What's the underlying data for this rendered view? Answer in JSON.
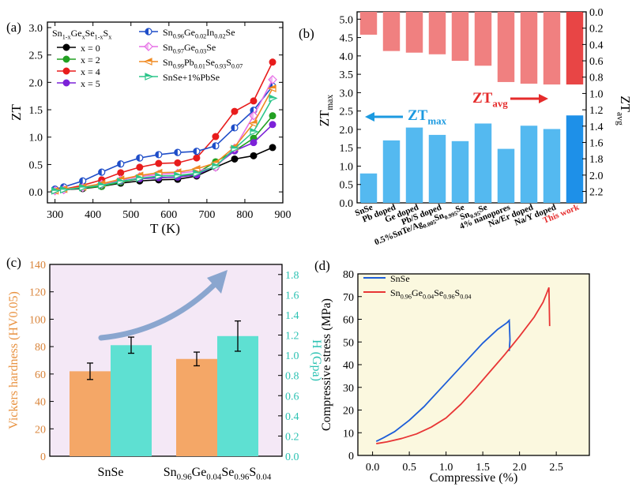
{
  "figure": {
    "panel_labels": [
      "(a)",
      "(b)",
      "(c)",
      "(d)"
    ],
    "colors": {
      "axis": "#000000",
      "b_top": "#f08080",
      "b_top_highlight": "#e84545",
      "b_bottom": "#54b9f0",
      "b_bottom_highlight": "#1e90e8",
      "c_bg": "#f4e8f6",
      "c_bar_left": "#f4a767",
      "c_bar_right": "#5ee0d2",
      "c_arrow": "#8aa6cf",
      "d_bg": "#fbf8df",
      "red_text": "#e52b2b",
      "blue_text": "#1c9ae0"
    }
  },
  "chart_data": [
    {
      "type": "line",
      "panel": "(a)",
      "xlabel": "T (K)",
      "ylabel": "ZT",
      "xlim": [
        280,
        900
      ],
      "ylim": [
        -0.2,
        3.1
      ],
      "xticks": [
        300,
        400,
        500,
        600,
        700,
        800,
        900
      ],
      "yticks": [
        0.0,
        0.5,
        1.0,
        1.5,
        2.0,
        2.5,
        3.0
      ],
      "legend_title": "Sn1-xGexSe1-xSx",
      "series": [
        {
          "name": "x = 0",
          "legend": "x = 0",
          "color": "#000000",
          "marker": "circle",
          "x": [
            300,
            323,
            373,
            423,
            473,
            523,
            573,
            623,
            673,
            723,
            773,
            823,
            873
          ],
          "y": [
            0.03,
            0.04,
            0.06,
            0.1,
            0.16,
            0.2,
            0.22,
            0.23,
            0.29,
            0.45,
            0.6,
            0.66,
            0.81
          ]
        },
        {
          "name": "x = 2",
          "legend": "x = 2",
          "color": "#22a022",
          "marker": "circle",
          "x": [
            300,
            323,
            373,
            423,
            473,
            523,
            573,
            623,
            673,
            723,
            773,
            823,
            873
          ],
          "y": [
            0.02,
            0.04,
            0.07,
            0.1,
            0.18,
            0.24,
            0.26,
            0.27,
            0.34,
            0.55,
            0.75,
            0.98,
            1.39
          ]
        },
        {
          "name": "x = 4",
          "legend": "x = 4",
          "color": "#e81c1c",
          "marker": "circle",
          "x": [
            300,
            323,
            373,
            423,
            473,
            523,
            573,
            623,
            673,
            723,
            773,
            823,
            873
          ],
          "y": [
            0.03,
            0.05,
            0.12,
            0.22,
            0.35,
            0.45,
            0.52,
            0.53,
            0.62,
            1.01,
            1.47,
            1.66,
            2.37
          ]
        },
        {
          "name": "x = 5",
          "legend": "x = 5",
          "color": "#7c22d8",
          "marker": "circle",
          "x": [
            300,
            323,
            373,
            423,
            473,
            523,
            573,
            623,
            673,
            723,
            773,
            823,
            873
          ],
          "y": [
            0.02,
            0.04,
            0.08,
            0.14,
            0.2,
            0.24,
            0.26,
            0.27,
            0.31,
            0.48,
            0.75,
            0.9,
            1.23
          ]
        },
        {
          "name": "Sn0.96Ge0.02In0.02Se",
          "legend_base": "Sn",
          "legend_parts": [
            [
              "0.96",
              "sub"
            ],
            [
              "Ge",
              "n"
            ],
            [
              "0.02",
              "sub"
            ],
            [
              "In",
              "n"
            ],
            [
              "0.02",
              "sub"
            ],
            [
              "Se",
              "n"
            ]
          ],
          "color": "#1e4dc8",
          "marker": "half-circle",
          "x": [
            300,
            323,
            373,
            423,
            473,
            523,
            573,
            623,
            673,
            723,
            773,
            823,
            873
          ],
          "y": [
            0.05,
            0.09,
            0.2,
            0.36,
            0.51,
            0.62,
            0.68,
            0.72,
            0.74,
            0.84,
            1.17,
            1.49,
            1.93
          ]
        },
        {
          "name": "Sn0.97Ge0.03Se",
          "legend_base": "Sn",
          "legend_parts": [
            [
              "0.97",
              "sub"
            ],
            [
              "Ge",
              "n"
            ],
            [
              "0.03",
              "sub"
            ],
            [
              "Se",
              "n"
            ]
          ],
          "color": "#e66ee6",
          "marker": "diamond",
          "x": [
            300,
            323,
            373,
            423,
            473,
            523,
            573,
            623,
            673,
            723,
            773,
            823,
            873
          ],
          "y": [
            0.02,
            0.04,
            0.08,
            0.14,
            0.22,
            0.28,
            0.32,
            0.34,
            0.38,
            0.45,
            0.8,
            1.39,
            2.05
          ]
        },
        {
          "name": "Sn0.99Pb0.01Se0.93S0.07",
          "legend_base": "Sn",
          "legend_parts": [
            [
              "0.99",
              "sub"
            ],
            [
              "Pb",
              "n"
            ],
            [
              "0.01",
              "sub"
            ],
            [
              "Se",
              "n"
            ],
            [
              "0.93",
              "sub"
            ],
            [
              "S",
              "n"
            ],
            [
              "0.07",
              "sub"
            ]
          ],
          "color": "#f08a22",
          "marker": "left-tri",
          "x": [
            300,
            323,
            373,
            423,
            473,
            523,
            573,
            623,
            673,
            723,
            773,
            823,
            873
          ],
          "y": [
            0.02,
            0.05,
            0.09,
            0.15,
            0.23,
            0.3,
            0.35,
            0.36,
            0.42,
            0.53,
            0.82,
            1.25,
            1.89
          ]
        },
        {
          "name": "SnSe+1%PbSe",
          "legend": "SnSe+1%PbSe",
          "color": "#2cc58a",
          "marker": "right-tri",
          "x": [
            300,
            323,
            373,
            423,
            473,
            523,
            573,
            623,
            673,
            723,
            773,
            823,
            873
          ],
          "y": [
            0.02,
            0.04,
            0.08,
            0.12,
            0.19,
            0.25,
            0.29,
            0.3,
            0.34,
            0.47,
            0.79,
            1.1,
            1.71
          ]
        }
      ]
    },
    {
      "type": "bar",
      "panel": "(b)",
      "ylabel": "ZTmax",
      "ylabel_main": "ZT",
      "ylabel_sub": "max",
      "y2label": "ZTavg",
      "y2label_main": "ZT",
      "y2label_sub": "avg",
      "categories": [
        "SnSe",
        "Pb doped",
        "Ge doped",
        "Pb/S doped",
        "0.5%SnTe/Ag0.005Sn0.995Se",
        "Sn0.95Se",
        "4% nanopores",
        "Na/Er doped",
        "Na/Y doped",
        "This work"
      ],
      "category_labels": [
        [
          [
            "SnSe",
            "n"
          ]
        ],
        [
          [
            "Pb doped",
            "n"
          ]
        ],
        [
          [
            "Ge doped",
            "n"
          ]
        ],
        [
          [
            "Pb/S doped",
            "n"
          ]
        ],
        [
          [
            "0.5%SnTe/Ag",
            "n"
          ],
          [
            "0.005",
            "sub"
          ],
          [
            "Sn",
            "n"
          ],
          [
            "0.995",
            "sub"
          ],
          [
            "Se",
            "n"
          ]
        ],
        [
          [
            "Sn",
            "n"
          ],
          [
            "0.95",
            "sub"
          ],
          [
            "Se",
            "n"
          ]
        ],
        [
          [
            "4% nanopores",
            "n"
          ]
        ],
        [
          [
            "Na/Er doped",
            "n"
          ]
        ],
        [
          [
            "Na/Y doped",
            "n"
          ]
        ],
        [
          [
            "This work",
            "n"
          ]
        ]
      ],
      "ztmax_values": [
        0.8,
        1.7,
        2.05,
        1.85,
        1.68,
        2.16,
        1.47,
        2.1,
        2.01,
        2.38
      ],
      "ztavg_values": [
        0.28,
        0.48,
        0.5,
        0.52,
        0.6,
        0.66,
        0.86,
        0.88,
        0.89,
        0.89
      ],
      "ylim": [
        0,
        5.2
      ],
      "y2lim": [
        0,
        2.34
      ],
      "yticks": [
        0.0,
        0.5,
        1.0,
        1.5,
        2.0,
        2.5,
        3.0,
        3.5,
        4.0,
        4.5,
        5.0
      ],
      "y2ticks": [
        0.0,
        0.2,
        0.4,
        0.6,
        0.8,
        1.0,
        1.2,
        1.4,
        1.6,
        1.8,
        2.0,
        2.2
      ],
      "annotation_left": {
        "main": "ZT",
        "sub": "max"
      },
      "annotation_right": {
        "main": "ZT",
        "sub": "avg"
      }
    },
    {
      "type": "bar",
      "panel": "(c)",
      "ylabel": "Vickers hardness (HV0.05)",
      "y2label": "H (Gpa)",
      "categories": [
        "SnSe",
        "Sn0.96Ge0.04Se0.96S0.04"
      ],
      "category_labels": [
        [
          [
            "SnSe",
            "n"
          ]
        ],
        [
          [
            "Sn",
            "n"
          ],
          [
            "0.96",
            "sub"
          ],
          [
            "Ge",
            "n"
          ],
          [
            "0.04",
            "sub"
          ],
          [
            "Se",
            "n"
          ],
          [
            "0.96",
            "sub"
          ],
          [
            "S",
            "n"
          ],
          [
            "0.04",
            "sub"
          ]
        ]
      ],
      "series": [
        {
          "name": "Vickers hardness",
          "axis": "left",
          "values": [
            62,
            71
          ],
          "errors": [
            6,
            5
          ]
        },
        {
          "name": "H",
          "axis": "right",
          "values": [
            1.1,
            1.19
          ],
          "errors": [
            0.08,
            0.15
          ]
        }
      ],
      "ylim": [
        0,
        140
      ],
      "y2lim": [
        0,
        1.9
      ],
      "yticks": [
        0,
        20,
        40,
        60,
        80,
        100,
        120,
        140
      ],
      "y2ticks": [
        0.0,
        0.2,
        0.4,
        0.6,
        0.8,
        1.0,
        1.2,
        1.4,
        1.6,
        1.8
      ]
    },
    {
      "type": "line",
      "panel": "(d)",
      "xlabel": "Compressive (%)",
      "ylabel": "Compressive stress (MPa)",
      "xlim": [
        -0.2,
        2.95
      ],
      "ylim": [
        0,
        80
      ],
      "xticks": [
        0.0,
        0.5,
        1.0,
        1.5,
        2.0,
        2.5
      ],
      "yticks": [
        0,
        10,
        20,
        30,
        40,
        50,
        60,
        70,
        80
      ],
      "series": [
        {
          "name": "SnSe",
          "legend_parts": [
            [
              "SnSe",
              "n"
            ]
          ],
          "color": "#1d5dd8",
          "x": [
            0.05,
            0.15,
            0.3,
            0.5,
            0.7,
            0.9,
            1.1,
            1.3,
            1.5,
            1.7,
            1.83,
            1.86,
            1.87,
            1.86
          ],
          "y": [
            6.2,
            7.8,
            10.5,
            15.5,
            21.5,
            28.5,
            35.5,
            42.5,
            49.5,
            55.5,
            58.5,
            59.5,
            51,
            46
          ]
        },
        {
          "name": "Sn0.96Ge0.04Se0.96S0.04",
          "legend_parts": [
            [
              "Sn",
              "n"
            ],
            [
              "0.96",
              "sub"
            ],
            [
              "Ge",
              "n"
            ],
            [
              "0.04",
              "sub"
            ],
            [
              "Se",
              "n"
            ],
            [
              "0.96",
              "sub"
            ],
            [
              "S",
              "n"
            ],
            [
              "0.04",
              "sub"
            ]
          ],
          "color": "#e83535",
          "x": [
            0.05,
            0.2,
            0.4,
            0.6,
            0.8,
            1.0,
            1.2,
            1.4,
            1.6,
            1.8,
            2.0,
            2.2,
            2.32,
            2.37,
            2.4,
            2.41
          ],
          "y": [
            5.2,
            6.0,
            7.5,
            9.5,
            12.5,
            16.5,
            22.5,
            29.5,
            37.0,
            44.5,
            52.5,
            61.0,
            67.5,
            71.5,
            74,
            57
          ]
        }
      ]
    }
  ]
}
